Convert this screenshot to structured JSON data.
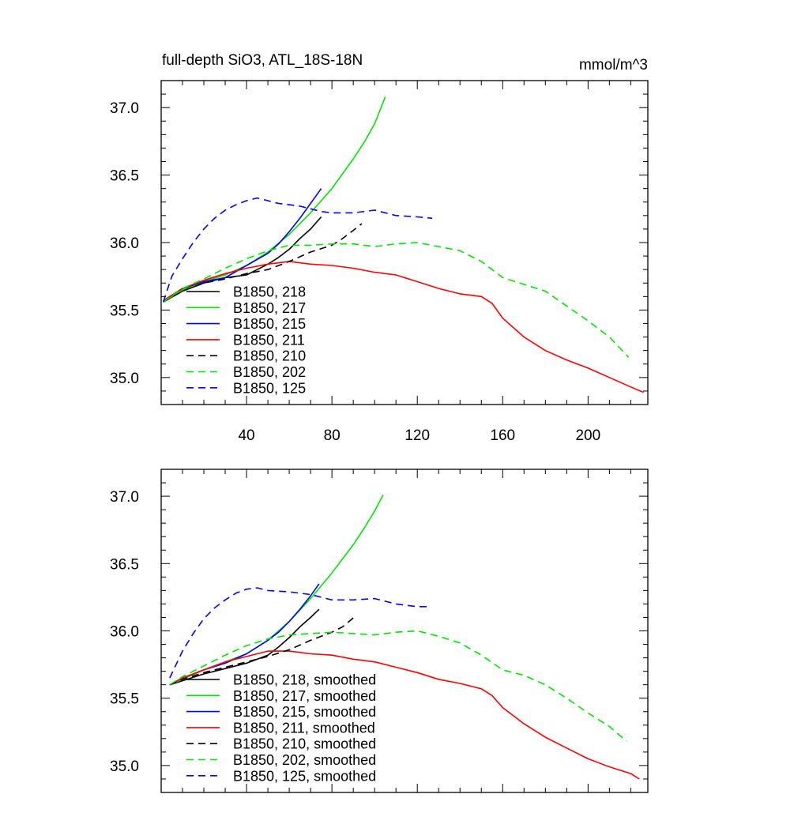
{
  "title_left": "full-depth SiO3, ATL_18S-18N",
  "title_right": "mmol/m^3",
  "chart_data": [
    {
      "type": "line",
      "xlim": [
        0,
        228
      ],
      "ylim": [
        34.8,
        37.2
      ],
      "xticks": [
        40,
        80,
        120,
        160,
        200
      ],
      "xtick_labels": [
        "40",
        "80",
        "120",
        "160",
        "200"
      ],
      "yticks": [
        35.0,
        35.5,
        36.0,
        36.5,
        37.0
      ],
      "ytick_labels": [
        "35.0",
        "35.5",
        "36.0",
        "36.5",
        "37.0"
      ],
      "legend_position": "lower-left",
      "series": [
        {
          "name": "B1850, 218",
          "color": "#000000",
          "dash": "solid",
          "points": [
            [
              1,
              35.56
            ],
            [
              10,
              35.64
            ],
            [
              20,
              35.7
            ],
            [
              30,
              35.74
            ],
            [
              40,
              35.76
            ],
            [
              45,
              35.8
            ],
            [
              50,
              35.84
            ],
            [
              55,
              35.89
            ],
            [
              60,
              35.95
            ],
            [
              65,
              36.03
            ],
            [
              70,
              36.1
            ],
            [
              75,
              36.19
            ]
          ]
        },
        {
          "name": "B1850, 217",
          "color": "#00e600",
          "dash": "solid",
          "points": [
            [
              1,
              35.56
            ],
            [
              10,
              35.65
            ],
            [
              20,
              35.71
            ],
            [
              30,
              35.76
            ],
            [
              40,
              35.83
            ],
            [
              50,
              35.93
            ],
            [
              60,
              36.06
            ],
            [
              70,
              36.22
            ],
            [
              80,
              36.4
            ],
            [
              90,
              36.62
            ],
            [
              95,
              36.74
            ],
            [
              100,
              36.88
            ],
            [
              105,
              37.08
            ]
          ]
        },
        {
          "name": "B1850, 215",
          "color": "#0000ff",
          "dash": "solid",
          "points": [
            [
              1,
              35.57
            ],
            [
              10,
              35.66
            ],
            [
              20,
              35.71
            ],
            [
              30,
              35.74
            ],
            [
              40,
              35.83
            ],
            [
              50,
              35.92
            ],
            [
              55,
              35.99
            ],
            [
              60,
              36.08
            ],
            [
              65,
              36.18
            ],
            [
              70,
              36.29
            ],
            [
              75,
              36.4
            ]
          ]
        },
        {
          "name": "B1850, 211",
          "color": "#ff0000",
          "dash": "solid",
          "points": [
            [
              1,
              35.57
            ],
            [
              10,
              35.66
            ],
            [
              20,
              35.72
            ],
            [
              30,
              35.77
            ],
            [
              40,
              35.81
            ],
            [
              50,
              35.84
            ],
            [
              60,
              35.86
            ],
            [
              70,
              35.84
            ],
            [
              80,
              35.83
            ],
            [
              90,
              35.81
            ],
            [
              100,
              35.78
            ],
            [
              110,
              35.76
            ],
            [
              120,
              35.71
            ],
            [
              130,
              35.66
            ],
            [
              140,
              35.62
            ],
            [
              150,
              35.6
            ],
            [
              155,
              35.55
            ],
            [
              160,
              35.44
            ],
            [
              170,
              35.3
            ],
            [
              180,
              35.2
            ],
            [
              190,
              35.13
            ],
            [
              200,
              35.07
            ],
            [
              210,
              35.0
            ],
            [
              220,
              34.93
            ],
            [
              226,
              34.89
            ]
          ]
        },
        {
          "name": "B1850, 210",
          "color": "#000000",
          "dash": "dashed",
          "points": [
            [
              1,
              35.56
            ],
            [
              10,
              35.64
            ],
            [
              20,
              35.7
            ],
            [
              30,
              35.73
            ],
            [
              40,
              35.77
            ],
            [
              50,
              35.8
            ],
            [
              60,
              35.86
            ],
            [
              70,
              35.93
            ],
            [
              80,
              35.98
            ],
            [
              85,
              36.03
            ],
            [
              90,
              36.09
            ],
            [
              94,
              36.14
            ]
          ]
        },
        {
          "name": "B1850, 202",
          "color": "#00e600",
          "dash": "dashed",
          "points": [
            [
              1,
              35.56
            ],
            [
              10,
              35.66
            ],
            [
              20,
              35.73
            ],
            [
              30,
              35.81
            ],
            [
              40,
              35.88
            ],
            [
              50,
              35.94
            ],
            [
              60,
              35.98
            ],
            [
              70,
              35.98
            ],
            [
              80,
              35.99
            ],
            [
              90,
              35.99
            ],
            [
              100,
              35.97
            ],
            [
              110,
              35.99
            ],
            [
              120,
              36.0
            ],
            [
              130,
              35.97
            ],
            [
              140,
              35.94
            ],
            [
              150,
              35.86
            ],
            [
              160,
              35.74
            ],
            [
              170,
              35.69
            ],
            [
              180,
              35.64
            ],
            [
              190,
              35.53
            ],
            [
              200,
              35.42
            ],
            [
              210,
              35.3
            ],
            [
              219,
              35.15
            ]
          ]
        },
        {
          "name": "B1850, 125",
          "color": "#0000ff",
          "dash": "dashed",
          "points": [
            [
              1,
              35.56
            ],
            [
              5,
              35.75
            ],
            [
              10,
              35.88
            ],
            [
              15,
              36.0
            ],
            [
              20,
              36.1
            ],
            [
              25,
              36.18
            ],
            [
              30,
              36.24
            ],
            [
              35,
              36.28
            ],
            [
              40,
              36.31
            ],
            [
              45,
              36.33
            ],
            [
              50,
              36.31
            ],
            [
              55,
              36.29
            ],
            [
              60,
              36.28
            ],
            [
              65,
              36.27
            ],
            [
              70,
              36.25
            ],
            [
              75,
              36.23
            ],
            [
              80,
              36.22
            ],
            [
              90,
              36.22
            ],
            [
              100,
              36.24
            ],
            [
              110,
              36.2
            ],
            [
              120,
              36.19
            ],
            [
              127,
              36.18
            ]
          ]
        }
      ]
    },
    {
      "type": "line",
      "xlim": [
        0,
        228
      ],
      "ylim": [
        34.8,
        37.2
      ],
      "xticks": [
        40,
        80,
        120,
        160,
        200
      ],
      "xtick_labels": [],
      "yticks": [
        35.0,
        35.5,
        36.0,
        36.5,
        37.0
      ],
      "ytick_labels": [
        "35.0",
        "35.5",
        "36.0",
        "36.5",
        "37.0"
      ],
      "legend_position": "lower-left",
      "series": [
        {
          "name": "B1850, 218, smoothed",
          "color": "#000000",
          "dash": "solid",
          "points": [
            [
              4,
              35.6
            ],
            [
              10,
              35.63
            ],
            [
              20,
              35.68
            ],
            [
              30,
              35.72
            ],
            [
              40,
              35.76
            ],
            [
              50,
              35.82
            ],
            [
              55,
              35.88
            ],
            [
              60,
              35.95
            ],
            [
              65,
              36.03
            ],
            [
              70,
              36.1
            ],
            [
              74,
              36.16
            ]
          ]
        },
        {
          "name": "B1850, 217, smoothed",
          "color": "#00e600",
          "dash": "solid",
          "points": [
            [
              4,
              35.6
            ],
            [
              10,
              35.64
            ],
            [
              20,
              35.71
            ],
            [
              30,
              35.77
            ],
            [
              40,
              35.83
            ],
            [
              50,
              35.93
            ],
            [
              60,
              36.07
            ],
            [
              70,
              36.24
            ],
            [
              80,
              36.43
            ],
            [
              90,
              36.64
            ],
            [
              95,
              36.76
            ],
            [
              100,
              36.89
            ],
            [
              104,
              37.01
            ]
          ]
        },
        {
          "name": "B1850, 215, smoothed",
          "color": "#0000ff",
          "dash": "solid",
          "points": [
            [
              4,
              35.6
            ],
            [
              10,
              35.65
            ],
            [
              20,
              35.71
            ],
            [
              30,
              35.76
            ],
            [
              40,
              35.83
            ],
            [
              50,
              35.93
            ],
            [
              55,
              35.99
            ],
            [
              60,
              36.07
            ],
            [
              65,
              36.16
            ],
            [
              70,
              36.26
            ],
            [
              74,
              36.35
            ]
          ]
        },
        {
          "name": "B1850, 211, smoothed",
          "color": "#ff0000",
          "dash": "solid",
          "points": [
            [
              4,
              35.6
            ],
            [
              10,
              35.65
            ],
            [
              20,
              35.71
            ],
            [
              30,
              35.77
            ],
            [
              40,
              35.81
            ],
            [
              50,
              35.85
            ],
            [
              60,
              35.85
            ],
            [
              70,
              35.83
            ],
            [
              80,
              35.82
            ],
            [
              90,
              35.79
            ],
            [
              100,
              35.77
            ],
            [
              110,
              35.73
            ],
            [
              120,
              35.69
            ],
            [
              130,
              35.64
            ],
            [
              140,
              35.61
            ],
            [
              150,
              35.57
            ],
            [
              155,
              35.52
            ],
            [
              160,
              35.43
            ],
            [
              170,
              35.31
            ],
            [
              180,
              35.21
            ],
            [
              190,
              35.13
            ],
            [
              200,
              35.05
            ],
            [
              210,
              34.99
            ],
            [
              220,
              34.94
            ],
            [
              224,
              34.9
            ]
          ]
        },
        {
          "name": "B1850, 210, smoothed",
          "color": "#000000",
          "dash": "dashed",
          "points": [
            [
              4,
              35.6
            ],
            [
              10,
              35.64
            ],
            [
              20,
              35.69
            ],
            [
              30,
              35.73
            ],
            [
              40,
              35.77
            ],
            [
              50,
              35.81
            ],
            [
              60,
              35.86
            ],
            [
              70,
              35.93
            ],
            [
              80,
              35.99
            ],
            [
              85,
              36.03
            ],
            [
              91,
              36.11
            ]
          ]
        },
        {
          "name": "B1850, 202, smoothed",
          "color": "#00e600",
          "dash": "dashed",
          "points": [
            [
              4,
              35.6
            ],
            [
              10,
              35.66
            ],
            [
              20,
              35.74
            ],
            [
              30,
              35.82
            ],
            [
              40,
              35.89
            ],
            [
              50,
              35.94
            ],
            [
              60,
              35.97
            ],
            [
              70,
              35.98
            ],
            [
              80,
              35.99
            ],
            [
              90,
              35.98
            ],
            [
              100,
              35.97
            ],
            [
              110,
              35.99
            ],
            [
              120,
              36.0
            ],
            [
              130,
              35.96
            ],
            [
              140,
              35.91
            ],
            [
              150,
              35.82
            ],
            [
              160,
              35.71
            ],
            [
              170,
              35.67
            ],
            [
              180,
              35.6
            ],
            [
              190,
              35.5
            ],
            [
              200,
              35.39
            ],
            [
              210,
              35.29
            ],
            [
              218,
              35.18
            ]
          ]
        },
        {
          "name": "B1850, 125, smoothed",
          "color": "#0000ff",
          "dash": "dashed",
          "points": [
            [
              4,
              35.65
            ],
            [
              10,
              35.85
            ],
            [
              15,
              35.98
            ],
            [
              20,
              36.09
            ],
            [
              25,
              36.17
            ],
            [
              30,
              36.23
            ],
            [
              35,
              36.28
            ],
            [
              40,
              36.31
            ],
            [
              45,
              36.32
            ],
            [
              50,
              36.3
            ],
            [
              60,
              36.29
            ],
            [
              70,
              36.27
            ],
            [
              80,
              36.23
            ],
            [
              90,
              36.23
            ],
            [
              100,
              36.24
            ],
            [
              110,
              36.2
            ],
            [
              120,
              36.18
            ],
            [
              125,
              36.18
            ]
          ]
        }
      ]
    }
  ]
}
